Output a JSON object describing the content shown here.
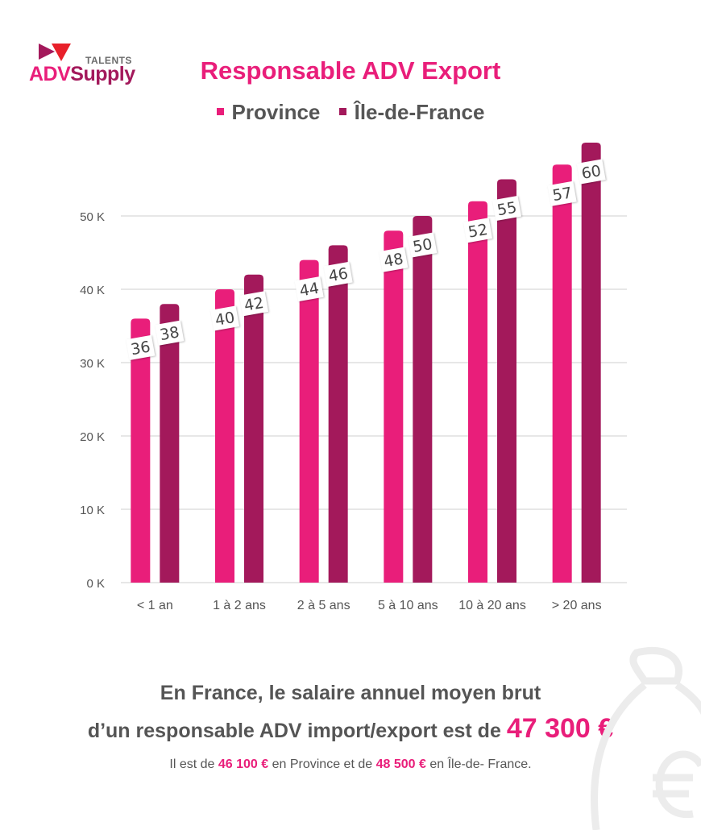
{
  "logo": {
    "talents": "TALENTS",
    "adv": "ADV",
    "supply": "Supply"
  },
  "chart_data": {
    "type": "bar",
    "title": "Responsable ADV Export",
    "categories": [
      "< 1 an",
      "1 à 2 ans",
      "2 à 5 ans",
      "5 à 10 ans",
      "10 à 20 ans",
      ">  20 ans"
    ],
    "series": [
      {
        "name": "Province",
        "color": "#e91e7a",
        "values": [
          36,
          40,
          44,
          48,
          52,
          57
        ]
      },
      {
        "name": "Île-de-France",
        "color": "#a3195b",
        "values": [
          38,
          42,
          46,
          50,
          55,
          60
        ]
      }
    ],
    "yticks": [
      "0 K",
      "10 K",
      "20 K",
      "30 K",
      "40 K",
      "50 K"
    ],
    "ylim": [
      0,
      60
    ],
    "grid": true,
    "legend": "top"
  },
  "summary": {
    "line1": "En France, le salaire annuel moyen brut",
    "line2": "d’un responsable ADV import/export est de",
    "amount": "47 300 €",
    "sub_pre": "Il est de",
    "sub_province": "46 100 €",
    "sub_mid": "en Province et de",
    "sub_idf": "48 500 €",
    "sub_post": "en Île-de- France."
  },
  "watermark_icon": "money-bag-euro-icon"
}
